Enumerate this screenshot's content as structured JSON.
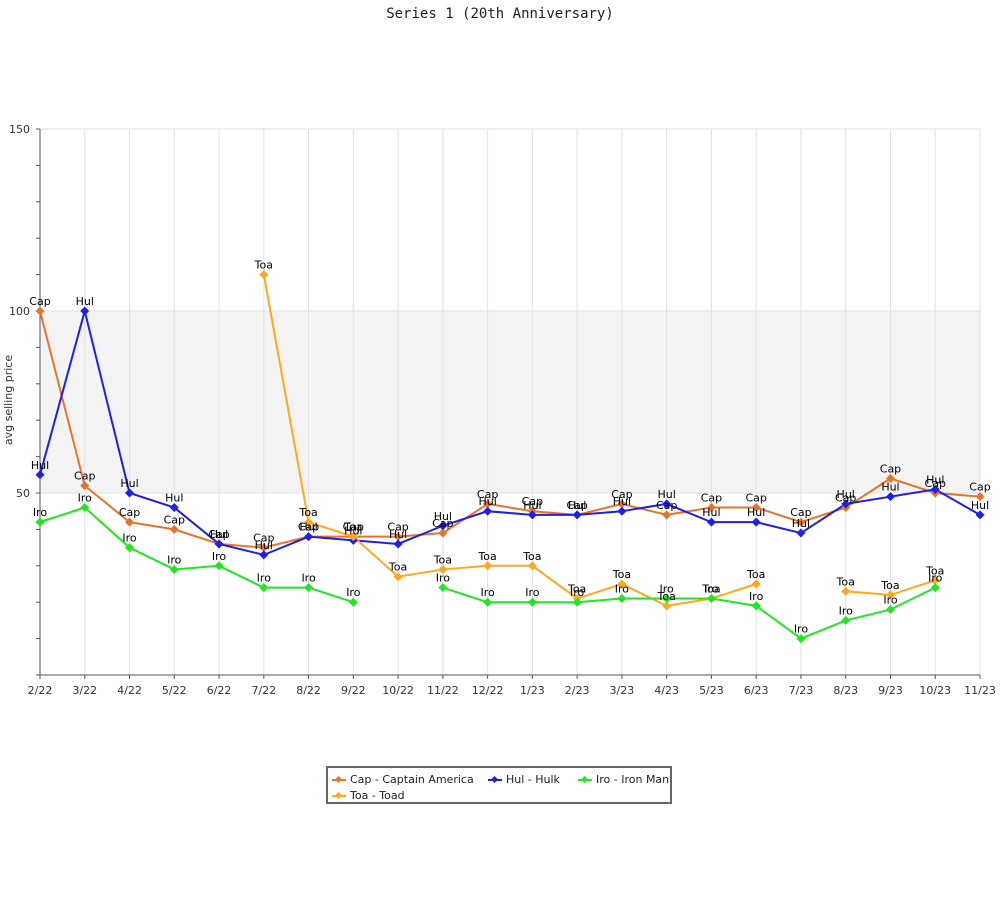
{
  "title": "Series 1 (20th Anniversary)",
  "chart_data": {
    "type": "line",
    "title": "Series 1 (20th Anniversary)",
    "xlabel": "",
    "ylabel": "avg selling price",
    "ylim": [
      0,
      150
    ],
    "yticks": [
      50,
      100,
      150
    ],
    "shaded_band": [
      50,
      100
    ],
    "grid": true,
    "legend_position": "bottom-center",
    "categories": [
      "2/22",
      "3/22",
      "4/22",
      "5/22",
      "6/22",
      "7/22",
      "8/22",
      "9/22",
      "10/22",
      "11/22",
      "12/22",
      "1/23",
      "2/23",
      "3/23",
      "4/23",
      "5/23",
      "6/23",
      "7/23",
      "8/23",
      "9/23",
      "10/23",
      "11/23"
    ],
    "series": [
      {
        "name": "Cap - Captain America",
        "label": "Cap",
        "color": "#e8742a",
        "values": [
          100,
          52,
          42,
          40,
          36,
          35,
          38,
          38,
          38,
          39,
          47,
          45,
          44,
          47,
          44,
          46,
          46,
          42,
          46,
          54,
          50,
          49
        ]
      },
      {
        "name": "Hul - Hulk",
        "label": "Hul",
        "color": "#1f1fe6",
        "values": [
          55,
          100,
          50,
          46,
          36,
          33,
          38,
          37,
          36,
          41,
          45,
          44,
          44,
          45,
          47,
          42,
          42,
          39,
          47,
          49,
          51,
          44
        ]
      },
      {
        "name": "Toa - Toad",
        "label": "Toa",
        "color": "#ffa81e",
        "values": [
          null,
          null,
          null,
          null,
          null,
          110,
          42,
          38,
          27,
          29,
          30,
          30,
          21,
          25,
          19,
          21,
          25,
          null,
          23,
          22,
          26,
          null
        ]
      },
      {
        "name": "Iro - Iron Man",
        "label": "Iro",
        "color": "#1ee81e",
        "values": [
          42,
          46,
          35,
          29,
          30,
          24,
          24,
          20,
          null,
          24,
          20,
          20,
          20,
          21,
          21,
          21,
          19,
          10,
          15,
          18,
          24,
          null
        ]
      }
    ]
  }
}
